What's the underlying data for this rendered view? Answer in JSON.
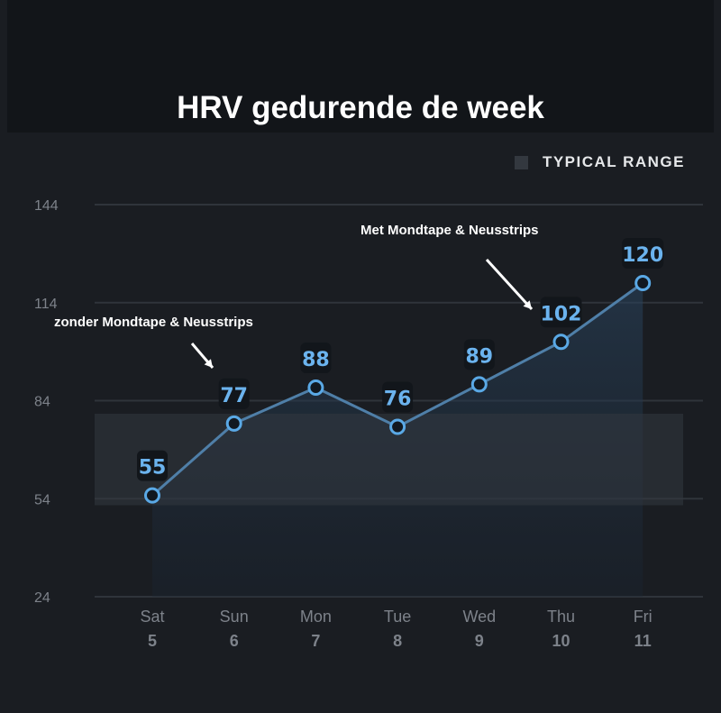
{
  "chart_data": {
    "type": "line",
    "title": "HRV gedurende de week",
    "categories": [
      [
        "Sat",
        "5"
      ],
      [
        "Sun",
        "6"
      ],
      [
        "Mon",
        "7"
      ],
      [
        "Tue",
        "8"
      ],
      [
        "Wed",
        "9"
      ],
      [
        "Thu",
        "10"
      ],
      [
        "Fri",
        "11"
      ]
    ],
    "values": [
      55,
      77,
      88,
      76,
      89,
      102,
      120
    ],
    "ylim": [
      24,
      144
    ],
    "yticks": [
      144,
      114,
      84,
      54,
      24
    ],
    "grid": true,
    "typical_range": [
      52,
      80
    ],
    "legend": {
      "label": "TYPICAL RANGE",
      "placement": "top-right"
    },
    "annotations": [
      {
        "text": "zonder Mondtape & Neusstrips",
        "points_to": "Sun"
      },
      {
        "text": "Met Mondtape & Neusstrips",
        "points_to": "Thu"
      }
    ],
    "colors": {
      "line": "#4f7fa8",
      "marker": "#5aa9e6",
      "label": "#6bb3ee",
      "band": "#33383f",
      "background": "#1a1d22"
    }
  }
}
